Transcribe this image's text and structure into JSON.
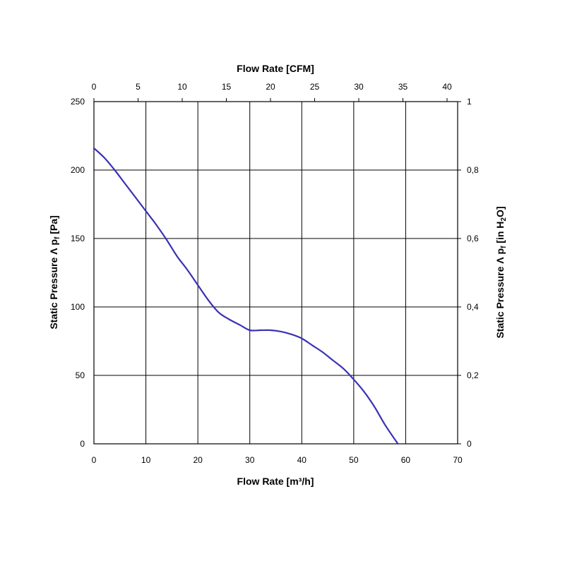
{
  "chart_data": {
    "type": "line",
    "xlabel_bottom": "Flow Rate [m³/h]",
    "xlabel_top": "Flow Rate [CFM]",
    "ylabel_left": {
      "main": "Static Pressure ",
      "delta": "Λ",
      "p": " p",
      "p_sub": "f",
      "unit": " [Pa]"
    },
    "ylabel_right": {
      "main": "Static Pressure ",
      "delta": "Λ",
      "p": " p",
      "p_sub": "f",
      "unit_pre": " [in H",
      "unit_sub": "2",
      "unit_post": "O]"
    },
    "x_bottom": {
      "lim": [
        0,
        70
      ],
      "ticks": [
        0,
        10,
        20,
        30,
        40,
        50,
        60,
        70
      ],
      "labels": [
        "0",
        "10",
        "20",
        "30",
        "40",
        "50",
        "60",
        "70"
      ]
    },
    "x_top": {
      "lim": [
        0,
        41.2
      ],
      "ticks": [
        0,
        5,
        10,
        15,
        20,
        25,
        30,
        35,
        40
      ],
      "labels": [
        "0",
        "5",
        "10",
        "15",
        "20",
        "25",
        "30",
        "35",
        "40"
      ]
    },
    "y_left": {
      "lim": [
        0,
        250
      ],
      "ticks": [
        0,
        50,
        100,
        150,
        200,
        250
      ],
      "labels": [
        "0",
        "50",
        "100",
        "150",
        "200",
        "250"
      ]
    },
    "y_right": {
      "lim": [
        0,
        1
      ],
      "ticks": [
        0,
        0.2,
        0.4,
        0.6,
        0.8,
        1
      ],
      "labels": [
        "0",
        "0,2",
        "0,4",
        "0,6",
        "0,8",
        "1"
      ]
    },
    "grid": true,
    "series": [
      {
        "color": "#3a32b4",
        "x": [
          0,
          2,
          4,
          6,
          8,
          10,
          12,
          14,
          16,
          18,
          20,
          22,
          24,
          26,
          28,
          30,
          32,
          34,
          36,
          38,
          40,
          42,
          44,
          46,
          48,
          50,
          52,
          54,
          56,
          58.5
        ],
        "y": [
          216,
          209,
          200,
          190,
          180,
          170,
          160,
          149,
          137,
          127,
          116,
          105,
          96,
          91,
          87,
          83,
          83,
          83,
          82,
          80,
          77,
          72,
          67,
          61,
          55,
          47,
          38,
          27,
          14,
          0
        ]
      }
    ]
  }
}
